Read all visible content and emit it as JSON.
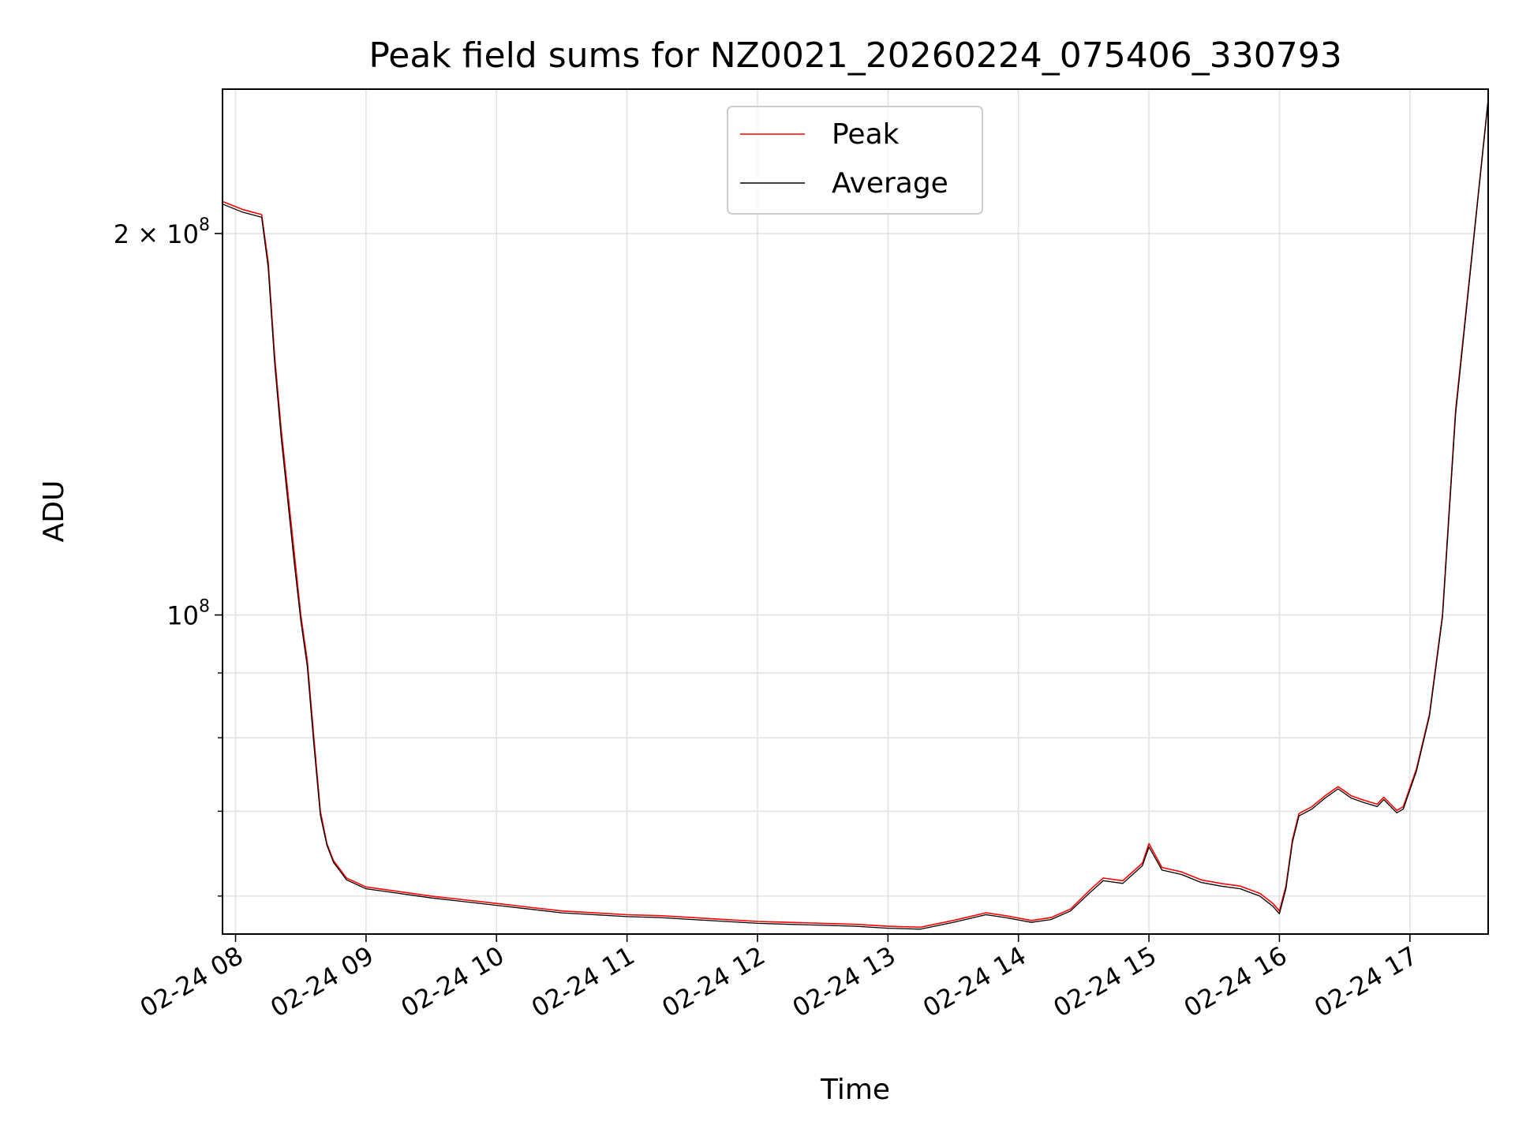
{
  "chart_data": {
    "type": "line",
    "title": "Peak field sums for NZ0021_20260224_075406_330793",
    "xlabel": "Time",
    "ylabel": "ADU",
    "x_ticks": [
      "02-24 08",
      "02-24 09",
      "02-24 10",
      "02-24 11",
      "02-24 12",
      "02-24 13",
      "02-24 14",
      "02-24 15",
      "02-24 16",
      "02-24 17"
    ],
    "x_tick_hours": [
      8,
      9,
      10,
      11,
      12,
      13,
      14,
      15,
      16,
      17
    ],
    "x_range_hours": [
      7.9,
      17.6
    ],
    "y_scale": "log",
    "y_range": [
      56000000.0,
      260000000.0
    ],
    "y_major_ticks": [
      {
        "value": 100000000,
        "base": "10",
        "exponent": "8"
      },
      {
        "value": 200000000,
        "mantissa": "2",
        "base": "10",
        "exponent": "8"
      }
    ],
    "y_minor_ticks": [
      60000000,
      70000000,
      80000000,
      90000000
    ],
    "grid": true,
    "legend_position": "top-center",
    "series": [
      {
        "name": "Peak",
        "color": "#ff0000",
        "note_points": "base curve plus short upward spikes",
        "x_hours": [
          7.9,
          8.05,
          8.2,
          8.25,
          8.3,
          8.35,
          8.45,
          8.5,
          8.55,
          8.6,
          8.65,
          8.7,
          8.75,
          8.85,
          9.0,
          9.25,
          9.5,
          9.75,
          10.0,
          10.25,
          10.5,
          10.75,
          11.0,
          11.25,
          11.5,
          11.75,
          12.0,
          12.25,
          12.5,
          12.75,
          13.0,
          13.25,
          13.5,
          13.75,
          13.9,
          14.1,
          14.25,
          14.4,
          14.55,
          14.65,
          14.8,
          14.95,
          15.0,
          15.1,
          15.25,
          15.4,
          15.55,
          15.7,
          15.85,
          15.95,
          16.0,
          16.05,
          16.1,
          16.15,
          16.25,
          16.35,
          16.45,
          16.55,
          16.65,
          16.75,
          16.8,
          16.9,
          16.95,
          17.05,
          17.15,
          17.25,
          17.35,
          17.6
        ],
        "values": [
          212000000,
          209000000,
          207000000,
          190000000,
          160000000,
          140000000,
          112000000,
          100000000,
          92000000,
          80000000,
          70000000,
          66000000,
          64000000,
          62000000,
          61000000,
          60500000,
          60000000,
          59600000,
          59200000,
          58800000,
          58400000,
          58200000,
          58000000,
          57900000,
          57700000,
          57500000,
          57300000,
          57200000,
          57100000,
          57000000,
          56800000,
          56700000,
          57400000,
          58200000,
          57900000,
          57400000,
          57700000,
          58600000,
          60700000,
          62000000,
          61700000,
          63700000,
          66000000,
          63200000,
          62700000,
          61800000,
          61400000,
          61100000,
          60300000,
          59200000,
          58400000,
          61100000,
          66500000,
          69700000,
          70600000,
          72000000,
          73200000,
          72000000,
          71400000,
          70900000,
          71800000,
          70100000,
          70600000,
          75600000,
          83500000,
          100000000,
          145000000,
          255000000
        ]
      },
      {
        "name": "Average",
        "color": "#000000",
        "x_hours": [
          7.9,
          8.05,
          8.2,
          8.25,
          8.3,
          8.35,
          8.45,
          8.5,
          8.55,
          8.6,
          8.65,
          8.7,
          8.75,
          8.85,
          9.0,
          9.25,
          9.5,
          9.75,
          10.0,
          10.25,
          10.5,
          10.75,
          11.0,
          11.25,
          11.5,
          11.75,
          12.0,
          12.25,
          12.5,
          12.75,
          13.0,
          13.25,
          13.5,
          13.75,
          13.9,
          14.1,
          14.25,
          14.4,
          14.55,
          14.65,
          14.8,
          14.95,
          15.0,
          15.1,
          15.25,
          15.4,
          15.55,
          15.7,
          15.85,
          15.95,
          16.0,
          16.05,
          16.1,
          16.15,
          16.25,
          16.35,
          16.45,
          16.55,
          16.65,
          16.75,
          16.8,
          16.9,
          16.95,
          17.05,
          17.15,
          17.25,
          17.35,
          17.6
        ],
        "values": [
          211000000,
          208000000,
          206000000,
          188000000,
          158000000,
          138000000,
          110000000,
          99000000,
          91000000,
          79000000,
          69500000,
          65800000,
          63800000,
          61800000,
          60800000,
          60300000,
          59800000,
          59400000,
          59000000,
          58600000,
          58200000,
          58000000,
          57800000,
          57700000,
          57500000,
          57300000,
          57100000,
          57000000,
          56900000,
          56800000,
          56600000,
          56500000,
          57200000,
          58000000,
          57700000,
          57200000,
          57500000,
          58400000,
          60400000,
          61700000,
          61400000,
          63400000,
          65600000,
          62900000,
          62400000,
          61500000,
          61100000,
          60800000,
          60000000,
          58900000,
          58100000,
          60800000,
          66200000,
          69400000,
          70300000,
          71700000,
          72900000,
          71700000,
          71100000,
          70600000,
          71500000,
          69800000,
          70300000,
          75300000,
          83200000,
          99600000,
          144000000,
          255000000
        ]
      }
    ]
  }
}
